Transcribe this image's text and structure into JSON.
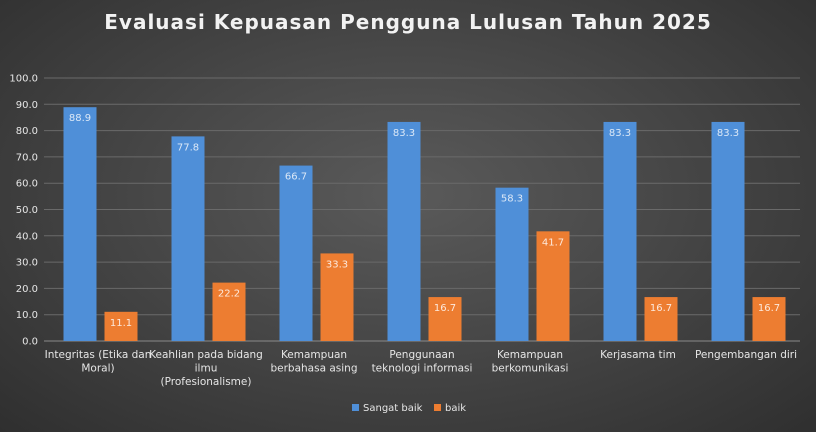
{
  "chart_data": {
    "type": "bar",
    "title": "Evaluasi Kepuasan Pengguna Lulusan Tahun 2025",
    "xlabel": "",
    "ylabel": "",
    "ylim": [
      0,
      100
    ],
    "ytick_labels": [
      "0.0",
      "10.0",
      "20.0",
      "30.0",
      "40.0",
      "50.0",
      "60.0",
      "70.0",
      "80.0",
      "90.0",
      "100.0"
    ],
    "grid": true,
    "legend_position": "bottom",
    "categories": [
      [
        "Integritas (Etika dan",
        "Moral)"
      ],
      [
        "Keahlian pada bidang",
        "ilmu",
        "(Profesionalisme)"
      ],
      [
        "Kemampuan",
        "berbahasa asing"
      ],
      [
        "Penggunaan",
        "teknologi informasi"
      ],
      [
        "Kemampuan",
        "berkomunikasi"
      ],
      [
        "Kerjasama tim"
      ],
      [
        "Pengembangan diri"
      ]
    ],
    "series": [
      {
        "name": "Sangat baik",
        "color": "#4f8fd8",
        "values": [
          88.9,
          77.8,
          66.7,
          83.3,
          58.3,
          83.3,
          83.3
        ]
      },
      {
        "name": "baik",
        "color": "#ed7d31",
        "values": [
          11.1,
          22.2,
          33.3,
          16.7,
          41.7,
          16.7,
          16.7
        ]
      }
    ]
  }
}
